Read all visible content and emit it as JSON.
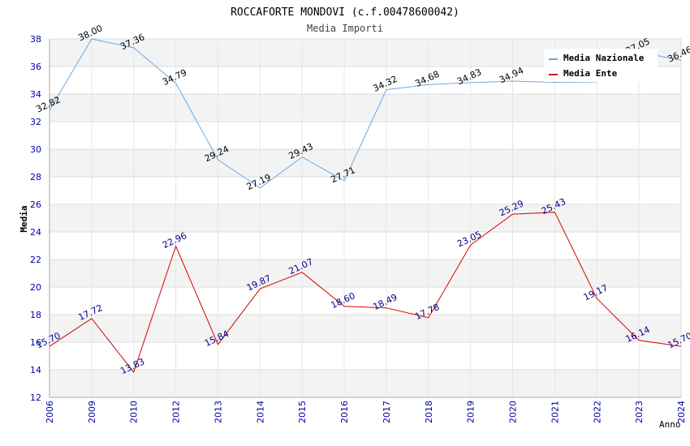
{
  "chart_data": {
    "type": "line",
    "title": "ROCCAFORTE MONDOVI (c.f.00478600042)",
    "subtitle": "Media Importi",
    "xlabel": "Anno",
    "ylabel": "Media",
    "ylim": [
      12,
      38
    ],
    "yticks": [
      12,
      14,
      16,
      18,
      20,
      22,
      24,
      26,
      28,
      30,
      32,
      34,
      36,
      38
    ],
    "categories": [
      "2006",
      "2009",
      "2010",
      "2012",
      "2013",
      "2014",
      "2015",
      "2016",
      "2017",
      "2018",
      "2019",
      "2020",
      "2021",
      "2022",
      "2023",
      "2024"
    ],
    "grid": true,
    "legend_position": "top-right",
    "series": [
      {
        "name": "Media Nazionale",
        "color": "#6aaae4",
        "values": [
          32.82,
          38.0,
          37.36,
          34.79,
          29.24,
          27.19,
          29.43,
          27.71,
          34.32,
          34.68,
          34.83,
          34.94,
          34.85,
          34.88,
          37.05,
          36.46
        ],
        "labels": [
          "32.82",
          "38.00",
          "37.36",
          "34.79",
          "29.24",
          "27.19",
          "29.43",
          "27.71",
          "34.32",
          "34.68",
          "34.83",
          "34.94",
          "",
          "",
          "37.05",
          "36.46"
        ]
      },
      {
        "name": "Media Ente",
        "color": "#dd0000",
        "values": [
          15.7,
          17.72,
          13.83,
          22.96,
          15.84,
          19.87,
          21.07,
          18.6,
          18.49,
          17.78,
          23.05,
          25.29,
          25.43,
          19.17,
          16.14,
          15.7
        ],
        "labels": [
          "15.70",
          "17.72",
          "13.83",
          "22.96",
          "15.84",
          "19.87",
          "21.07",
          "18.60",
          "18.49",
          "17.78",
          "23.05",
          "25.29",
          "25.43",
          "19.17",
          "16.14",
          "15.70"
        ]
      }
    ]
  }
}
